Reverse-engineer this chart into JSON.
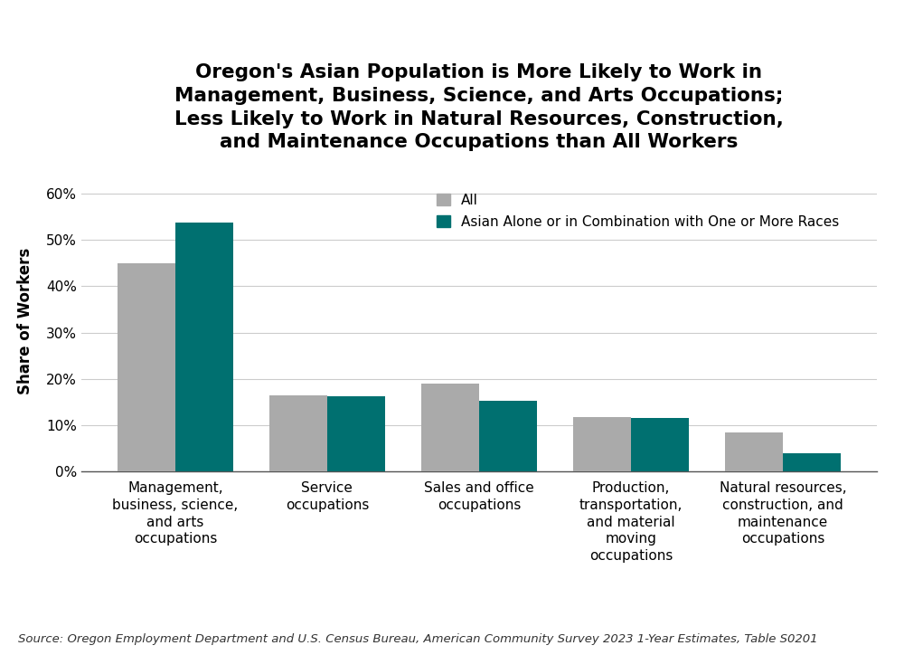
{
  "title": "Oregon's Asian Population is More Likely to Work in\nManagement, Business, Science, and Arts Occupations;\nLess Likely to Work in Natural Resources, Construction,\nand Maintenance Occupations than All Workers",
  "categories": [
    "Management,\nbusiness, science,\nand arts\noccupations",
    "Service\noccupations",
    "Sales and office\noccupations",
    "Production,\ntransportation,\nand material\nmoving\noccupations",
    "Natural resources,\nconstruction, and\nmaintenance\noccupations"
  ],
  "all_values": [
    0.45,
    0.165,
    0.19,
    0.118,
    0.085
  ],
  "asian_values": [
    0.537,
    0.163,
    0.153,
    0.115,
    0.039
  ],
  "all_color": "#aaaaaa",
  "asian_color": "#007070",
  "ylabel": "Share of Workers",
  "ylim": [
    0,
    0.65
  ],
  "yticks": [
    0.0,
    0.1,
    0.2,
    0.3,
    0.4,
    0.5,
    0.6
  ],
  "ytick_labels": [
    "0%",
    "10%",
    "20%",
    "30%",
    "40%",
    "50%",
    "60%"
  ],
  "legend_labels": [
    "All",
    "Asian Alone or in Combination with One or More Races"
  ],
  "source": "Source: Oregon Employment Department and U.S. Census Bureau, American Community Survey 2023 1-Year Estimates, Table S0201",
  "bar_width": 0.38,
  "title_fontsize": 15.5,
  "label_fontsize": 12,
  "tick_fontsize": 11,
  "legend_fontsize": 11,
  "source_fontsize": 9.5,
  "background_color": "#ffffff"
}
